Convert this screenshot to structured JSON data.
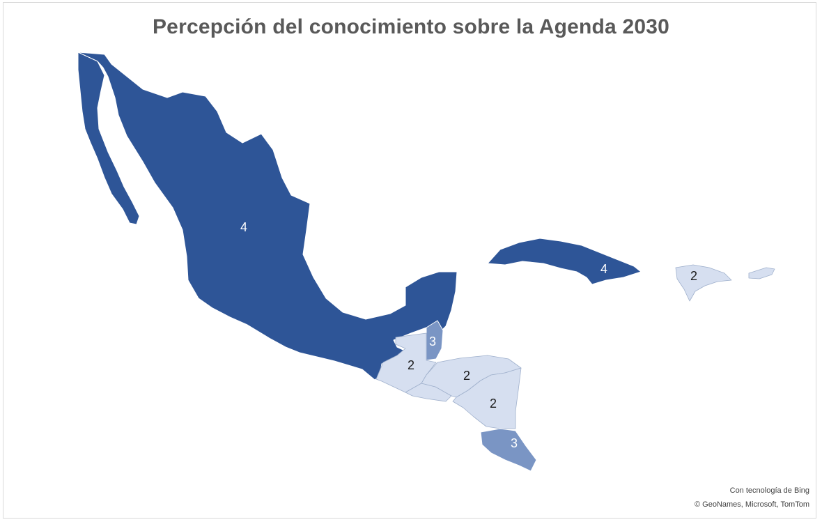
{
  "title": "Percepción del conocimiento sobre la Agenda 2030",
  "legend_scale": {
    "4": "#2e5597",
    "3": "#7a95c4",
    "2": "#d6dff0"
  },
  "regions": [
    {
      "id": "mexico",
      "value": "4"
    },
    {
      "id": "cuba",
      "value": "4"
    },
    {
      "id": "dominican-republic",
      "value": "2"
    },
    {
      "id": "belize",
      "value": "3"
    },
    {
      "id": "guatemala",
      "value": "2"
    },
    {
      "id": "honduras",
      "value": "2"
    },
    {
      "id": "nicaragua",
      "value": "2"
    },
    {
      "id": "costa-rica",
      "value": "3"
    }
  ],
  "attribution": {
    "line1": "Con tecnología de Bing",
    "line2": "© GeoNames, Microsoft, TomTom"
  }
}
